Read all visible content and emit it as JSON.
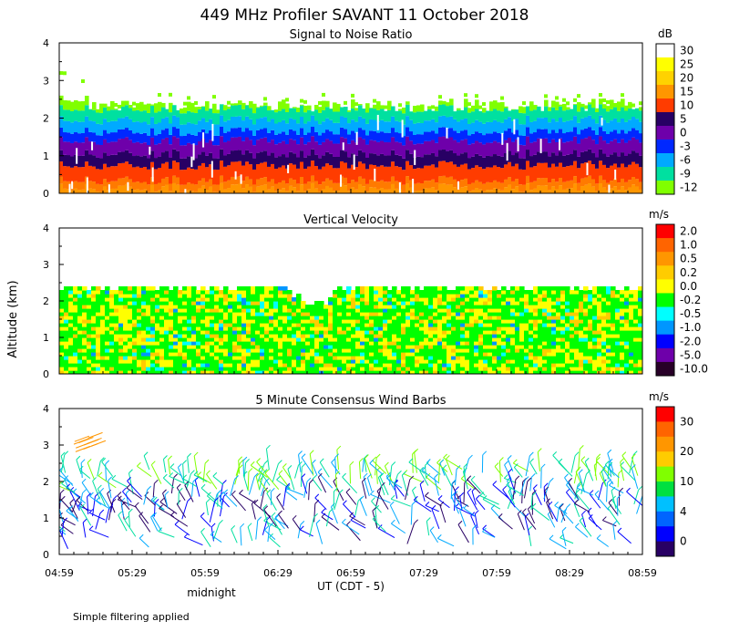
{
  "title": "449 MHz Profiler SAVANT 11 October 2018",
  "ylabel": "Altitude (km)",
  "xlabel": "UT  (CDT - 5)",
  "note_midnight": "midnight",
  "footer": "Simple filtering applied",
  "x_ticks": [
    "04:59",
    "05:29",
    "05:59",
    "06:29",
    "06:59",
    "07:29",
    "07:59",
    "08:29",
    "08:59"
  ],
  "y_ticks": [
    "0",
    "1",
    "2",
    "3",
    "4"
  ],
  "chart_data": [
    {
      "type": "heatmap",
      "title": "Signal to Noise Ratio",
      "unit": "dB",
      "ylim": [
        0,
        4
      ],
      "legend_labels": [
        "30",
        "25",
        "20",
        "15",
        "10",
        "5",
        "0",
        "-3",
        "-6",
        "-9",
        "-12"
      ],
      "legend_colors": [
        "#ffffff",
        "#ffff00",
        "#ffd200",
        "#ff9600",
        "#ff3c00",
        "#280064",
        "#6e00aa",
        "#0028ff",
        "#00aaff",
        "#00e0a0",
        "#80ff00"
      ],
      "bands": [
        {
          "from": 0.0,
          "to": 0.15,
          "color": "#ff9600"
        },
        {
          "from": 0.15,
          "to": 0.35,
          "color": "#ff7a00"
        },
        {
          "from": 0.35,
          "to": 0.75,
          "color": "#ff3c00"
        },
        {
          "from": 0.75,
          "to": 1.05,
          "color": "#280064"
        },
        {
          "from": 1.05,
          "to": 1.4,
          "color": "#6e00aa"
        },
        {
          "from": 1.4,
          "to": 1.65,
          "color": "#0028ff"
        },
        {
          "from": 1.65,
          "to": 1.95,
          "color": "#00aaff"
        },
        {
          "from": 1.95,
          "to": 2.25,
          "color": "#00e0a0"
        },
        {
          "from": 2.25,
          "to": 2.5,
          "color": "#80ff00"
        }
      ]
    },
    {
      "type": "heatmap",
      "title": "Vertical Velocity",
      "unit": "m/s",
      "ylim": [
        0,
        4
      ],
      "legend_labels": [
        "2.0",
        "1.0",
        "0.5",
        "0.2",
        "0.0",
        "-0.2",
        "-0.5",
        "-1.0",
        "-2.0",
        "-5.0",
        "-10.0"
      ],
      "legend_colors": [
        "#ff0000",
        "#ff6400",
        "#ff9600",
        "#ffcc00",
        "#ffff00",
        "#00ff00",
        "#00ffff",
        "#0096ff",
        "#0000ff",
        "#6e00aa",
        "#280028"
      ],
      "data_top_km": 2.4,
      "dominant_colors": [
        "#00ff00",
        "#ffff00",
        "#ffcc00",
        "#00ffff",
        "#0096ff"
      ]
    },
    {
      "type": "scatter",
      "title": "5 Minute Consensus Wind Barbs",
      "unit": "m/s",
      "ylim": [
        0,
        4
      ],
      "legend_labels": [
        "30",
        "20",
        "10",
        "4",
        "0"
      ],
      "legend_colors": [
        "#ff0000",
        "#ff6400",
        "#ff9600",
        "#ffcc00",
        "#80ff00",
        "#00e040",
        "#00c0ff",
        "#0064ff",
        "#0000ff",
        "#280064"
      ],
      "barb_colors": [
        "#0000ff",
        "#280064",
        "#00aaff",
        "#00e0a0",
        "#80ff00",
        "#ffcc00",
        "#ff6400"
      ]
    }
  ]
}
